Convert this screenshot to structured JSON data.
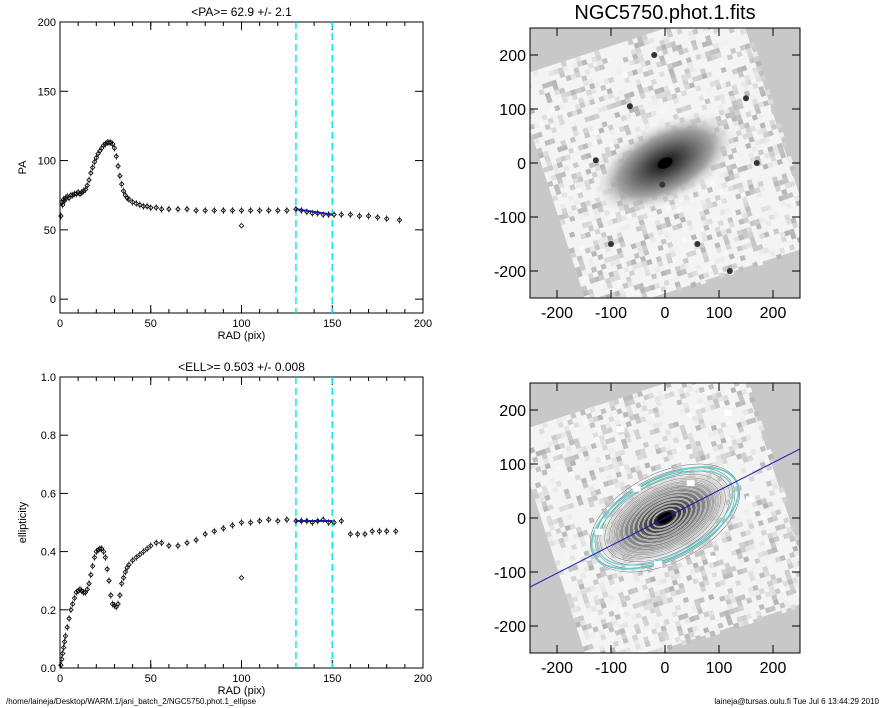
{
  "footer": {
    "path": "/home/laineja/Desktop/WARM.1/jani_batch_2/NGC5750.phot.1_ellipse",
    "stamp": "laineja@tursas.oulu.fi  Tue Jul  6 13:44:29 2010"
  },
  "chart_data": [
    {
      "type": "scatter",
      "panel": "pa-profile",
      "title": "<PA>=  62.9 +/-   2.1",
      "xlabel": "RAD (pix)",
      "ylabel": "PA",
      "xlim": [
        0,
        200
      ],
      "ylim": [
        -10,
        200
      ],
      "xticks": [
        0,
        50,
        100,
        150,
        200
      ],
      "yticks": [
        0,
        50,
        100,
        150,
        200
      ],
      "vlines": [
        130,
        150
      ],
      "vline_color": "#00e5ee",
      "fit_color": "#1a1aa0",
      "series": [
        {
          "x": [
            0.5,
            1,
            1.5,
            2,
            2.5,
            3,
            4,
            5,
            6,
            7,
            8,
            9,
            10,
            11,
            12,
            13,
            14,
            15,
            16,
            17,
            18,
            19,
            20,
            21,
            22,
            23,
            24,
            25,
            26,
            27,
            28,
            29,
            30,
            31,
            32,
            33,
            34,
            35,
            36,
            37,
            38,
            40,
            42,
            44,
            46,
            48,
            50,
            53,
            56,
            60,
            65,
            70,
            75,
            80,
            85,
            90,
            95,
            100,
            105,
            110,
            115,
            120,
            125,
            130,
            133,
            136,
            139,
            142,
            145,
            148,
            151,
            155,
            160,
            165,
            170,
            175,
            180,
            187
          ],
          "y": [
            60,
            70,
            68,
            72,
            71,
            73,
            74,
            73,
            75,
            75,
            76,
            76,
            77,
            76,
            77,
            78,
            79,
            82,
            86,
            91,
            95,
            99,
            102,
            105,
            107,
            109,
            111,
            112,
            113,
            113,
            113,
            112,
            109,
            103,
            96,
            89,
            83,
            78,
            75,
            73,
            72,
            70,
            69,
            68,
            67,
            67,
            66,
            66,
            65,
            65,
            65,
            65,
            64,
            64,
            64,
            64,
            64,
            64,
            64,
            64,
            64,
            64,
            64,
            65,
            64,
            63,
            62,
            62,
            61,
            61,
            61,
            61,
            61,
            60,
            60,
            59,
            58,
            57
          ]
        }
      ],
      "outliers": {
        "x": [
          100
        ],
        "y": [
          53
        ]
      },
      "fit_segment": {
        "x": [
          130,
          150
        ],
        "y": [
          65,
          61
        ]
      }
    },
    {
      "type": "scatter",
      "panel": "ell-profile",
      "title": "<ELL>= 0.503 +/-  0.008",
      "xlabel": "RAD (pix)",
      "ylabel": "ellipticity",
      "xlim": [
        0,
        200
      ],
      "ylim": [
        0.0,
        1.0
      ],
      "xticks": [
        0,
        50,
        100,
        150,
        200
      ],
      "yticks": [
        0.0,
        0.2,
        0.4,
        0.6,
        0.8,
        1.0
      ],
      "vlines": [
        130,
        150
      ],
      "vline_color": "#00e5ee",
      "fit_color": "#1a1aa0",
      "series": [
        {
          "x": [
            0.5,
            1,
            1.5,
            2,
            2.5,
            3,
            4,
            5,
            6,
            7,
            8,
            9,
            10,
            11,
            12,
            13,
            14,
            15,
            16,
            17,
            18,
            19,
            20,
            21,
            22,
            23,
            24,
            25,
            26,
            27,
            28,
            29,
            30,
            31,
            32,
            33,
            34,
            35,
            36,
            37,
            38,
            40,
            42,
            44,
            46,
            48,
            50,
            53,
            56,
            60,
            65,
            70,
            75,
            80,
            85,
            90,
            95,
            100,
            105,
            110,
            115,
            120,
            125,
            130,
            133,
            136,
            139,
            142,
            145,
            148,
            151,
            155,
            160,
            164,
            168,
            172,
            176,
            180,
            185
          ],
          "y": [
            0.01,
            0.03,
            0.05,
            0.07,
            0.09,
            0.11,
            0.14,
            0.17,
            0.2,
            0.22,
            0.24,
            0.26,
            0.265,
            0.27,
            0.265,
            0.26,
            0.26,
            0.27,
            0.29,
            0.32,
            0.35,
            0.38,
            0.4,
            0.405,
            0.41,
            0.41,
            0.4,
            0.38,
            0.34,
            0.3,
            0.25,
            0.22,
            0.215,
            0.21,
            0.22,
            0.25,
            0.29,
            0.31,
            0.33,
            0.345,
            0.355,
            0.37,
            0.38,
            0.39,
            0.4,
            0.41,
            0.42,
            0.43,
            0.43,
            0.42,
            0.42,
            0.43,
            0.44,
            0.46,
            0.47,
            0.48,
            0.49,
            0.5,
            0.5,
            0.505,
            0.51,
            0.505,
            0.51,
            0.505,
            0.505,
            0.505,
            0.5,
            0.505,
            0.51,
            0.5,
            0.5,
            0.505,
            0.46,
            0.46,
            0.46,
            0.47,
            0.47,
            0.47,
            0.47
          ]
        }
      ],
      "outliers": {
        "x": [
          100
        ],
        "y": [
          0.31
        ]
      },
      "fit_segment": {
        "x": [
          130,
          150
        ],
        "y": [
          0.505,
          0.505
        ]
      }
    },
    {
      "type": "heatmap",
      "panel": "galaxy-image",
      "title": "NGC5750.phot.1.fits",
      "xlim": [
        -250,
        250
      ],
      "ylim": [
        -250,
        250
      ],
      "xticks": [
        -200,
        -100,
        0,
        100,
        200
      ],
      "yticks": [
        -200,
        -100,
        0,
        100,
        200
      ],
      "galaxy_position_angle_deg": 62.9,
      "background": "#c8c8c8"
    },
    {
      "type": "heatmap",
      "panel": "isophote-image",
      "title": "",
      "xlim": [
        -250,
        250
      ],
      "ylim": [
        -250,
        250
      ],
      "xticks": [
        -200,
        -100,
        0,
        100,
        200
      ],
      "yticks": [
        -200,
        -100,
        0,
        100,
        200
      ],
      "galaxy_position_angle_deg": 62.9,
      "ellipticity": 0.503,
      "contour_color": "#606060",
      "outer_ellipse_color": "#66cccc",
      "major_axis_color": "#1a1ab0",
      "background": "#c8c8c8"
    }
  ]
}
